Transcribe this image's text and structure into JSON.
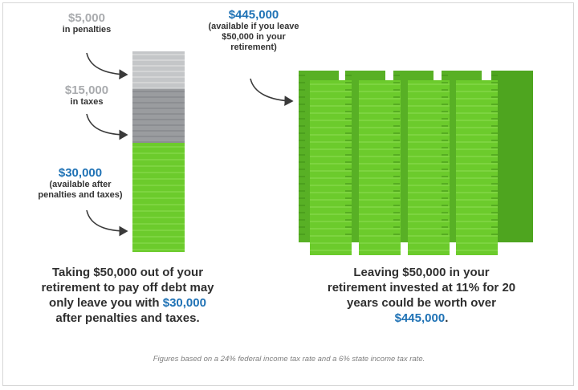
{
  "left": {
    "penalties": {
      "amount": "$5,000",
      "label": "in penalties"
    },
    "taxes": {
      "amount": "$15,000",
      "label": "in taxes"
    },
    "remaining": {
      "amount": "$30,000",
      "label_line1": "(available after",
      "label_line2": "penalties and taxes)"
    },
    "caption": {
      "line1": "Taking $50,000 out of your",
      "line2": "retirement to pay off debt may",
      "line3_pre": "only leave you with ",
      "line3_hl": "$30,000",
      "line4": "after penalties and taxes."
    }
  },
  "right": {
    "invested": {
      "amount": "$445,000",
      "label_line1": "(available if you leave",
      "label_line2": "$50,000 in your",
      "label_line3": "retirement)"
    },
    "caption": {
      "line1": "Leaving $50,000 in your",
      "line2": "retirement invested at 11% for 20",
      "line3": "years could be worth over",
      "line4_hl": "$445,000",
      "line4_post": "."
    }
  },
  "footnote": "Figures based on a 24% federal income tax rate and a 6% state income tax rate.",
  "colors": {
    "penalty_gray": "#c4c6c8",
    "tax_gray": "#9a9c9f",
    "cash_green": "#6ccb2c",
    "accent_blue": "#1f72b5"
  }
}
